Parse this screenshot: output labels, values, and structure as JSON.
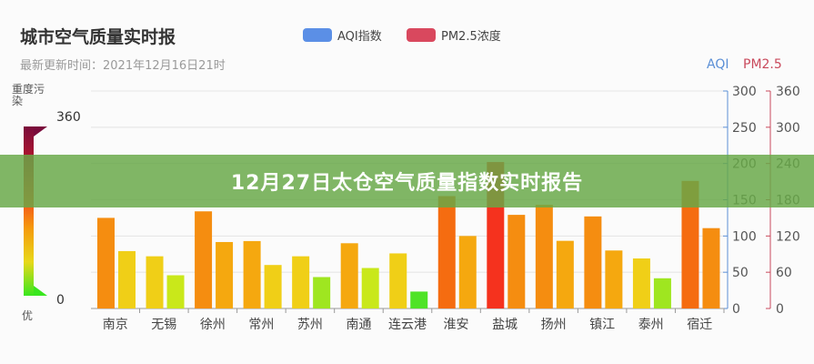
{
  "page": {
    "title": "城市空气质量实时报",
    "subtitle": "最新更新时间：2021年12月16日21时",
    "banner": "12月27日太仓空气质量指数实时报告"
  },
  "legend": [
    {
      "name": "AQI指数",
      "color": "#5b8fe6"
    },
    {
      "name": "PM2.5浓度",
      "color": "#d9485e"
    }
  ],
  "visual_map": {
    "top_label": "重度污染",
    "bottom_label": "优",
    "max": "360",
    "min": "0",
    "colors": [
      "#7a0b3b",
      "#b3172e",
      "#f43f1f",
      "#f59a0c",
      "#e8d819",
      "#39e61e"
    ]
  },
  "chart_data": {
    "type": "bar",
    "categories": [
      "南京",
      "无锡",
      "徐州",
      "常州",
      "苏州",
      "南通",
      "连云港",
      "淮安",
      "盐城",
      "扬州",
      "镇江",
      "泰州",
      "宿迁"
    ],
    "series": [
      {
        "name": "AQI指数",
        "axis": "left",
        "values": [
          125,
          72,
          134,
          93,
          72,
          90,
          76,
          155,
          202,
          143,
          127,
          69,
          176
        ]
      },
      {
        "name": "PM2.5浓度",
        "axis": "right",
        "values": [
          95,
          55,
          110,
          72,
          52,
          67,
          28,
          120,
          155,
          112,
          96,
          50,
          133
        ]
      }
    ],
    "y_left": {
      "label": "AQI",
      "min": 0,
      "max": 300,
      "ticks": [
        0,
        50,
        100,
        150,
        200,
        250,
        300
      ],
      "color": "#5b8fd6"
    },
    "y_right": {
      "label": "PM2.5",
      "min": 0,
      "max": 360,
      "ticks": [
        0,
        60,
        120,
        180,
        240,
        300,
        360
      ],
      "color": "#c94a5c"
    },
    "grid": true
  }
}
